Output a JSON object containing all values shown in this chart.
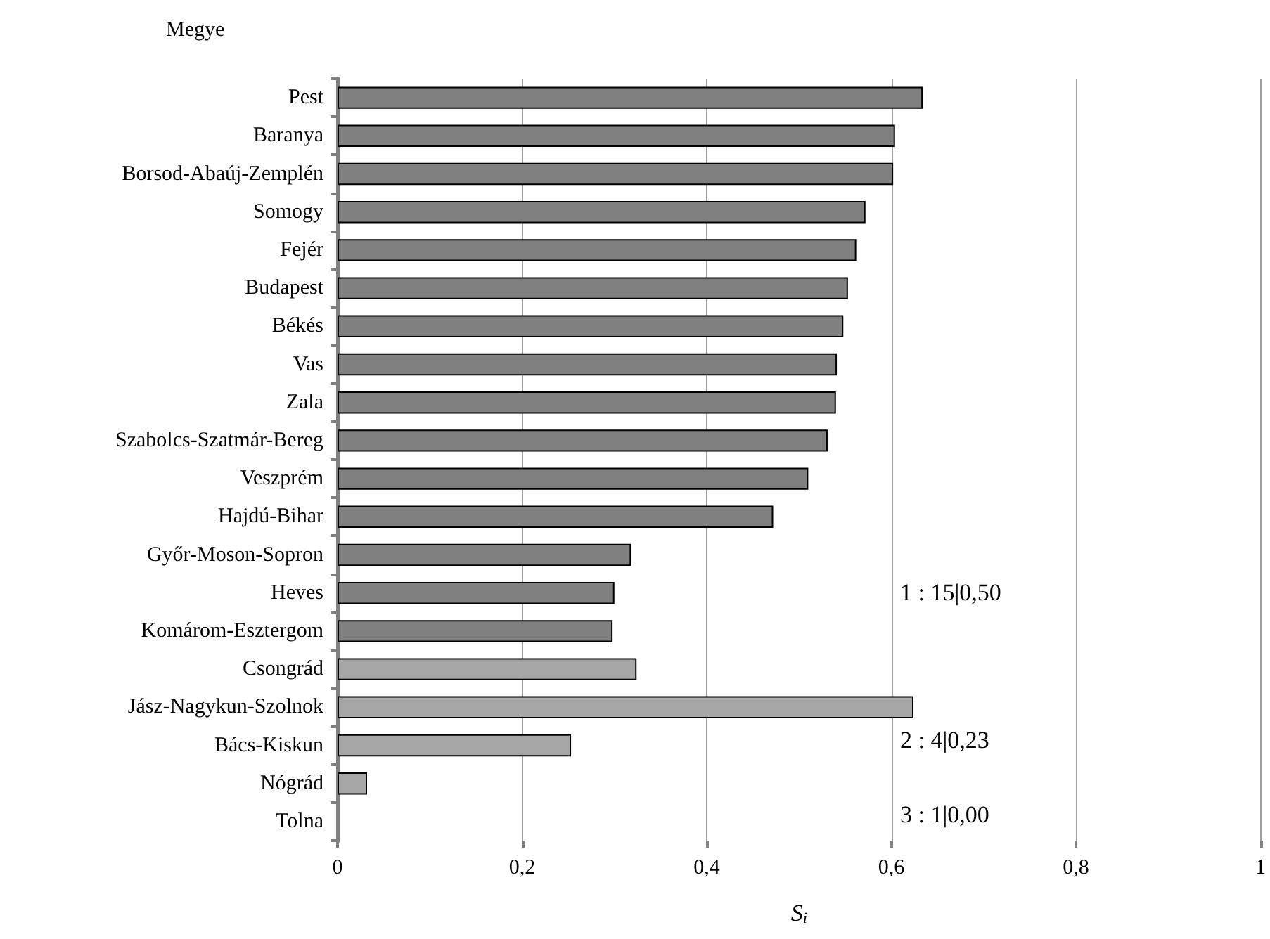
{
  "chart_data": {
    "type": "bar",
    "orientation": "horizontal",
    "ylabel": "Megye",
    "xlabel": "S$_{i}$",
    "categories": [
      "Pest",
      "Baranya",
      "Borsod-Abaúj-Zemplén",
      "Somogy",
      "Fejér",
      "Budapest",
      "Békés",
      "Vas",
      "Zala",
      "Szabolcs-Szatmár-Bereg",
      "Veszprém",
      "Hajdú-Bihar",
      "Győr-Moson-Sopron",
      "Heves",
      "Komárom-Esztergom",
      "Csongrád",
      "Jász-Nagykun-Szolnok",
      "Bács-Kiskun",
      "Nógrád",
      "Tolna"
    ],
    "values": [
      0.634,
      0.604,
      0.602,
      0.572,
      0.562,
      0.553,
      0.548,
      0.541,
      0.54,
      0.531,
      0.51,
      0.472,
      0.318,
      0.3,
      0.298,
      0.324,
      0.624,
      0.253,
      0.032,
      0
    ],
    "colors": [
      "#808080",
      "#808080",
      "#808080",
      "#808080",
      "#808080",
      "#808080",
      "#808080",
      "#808080",
      "#808080",
      "#808080",
      "#808080",
      "#808080",
      "#808080",
      "#808080",
      "#808080",
      "#a6a6a6",
      "#a6a6a6",
      "#a6a6a6",
      "#a6a6a6",
      "#a6a6a6"
    ],
    "xlim": [
      0,
      1
    ],
    "xticks": [
      0,
      {
        "value": 0.2,
        "label": "0,2"
      },
      {
        "value": 0.4,
        "label": "0,4"
      },
      {
        "value": 0.6,
        "label": "0,6"
      },
      {
        "value": 0.8,
        "label": "0,8"
      },
      1
    ],
    "grid": "x",
    "annotations": [
      "1 : 15|0,50",
      "2 : 4|0,23",
      "3 : 1|0,00"
    ]
  }
}
